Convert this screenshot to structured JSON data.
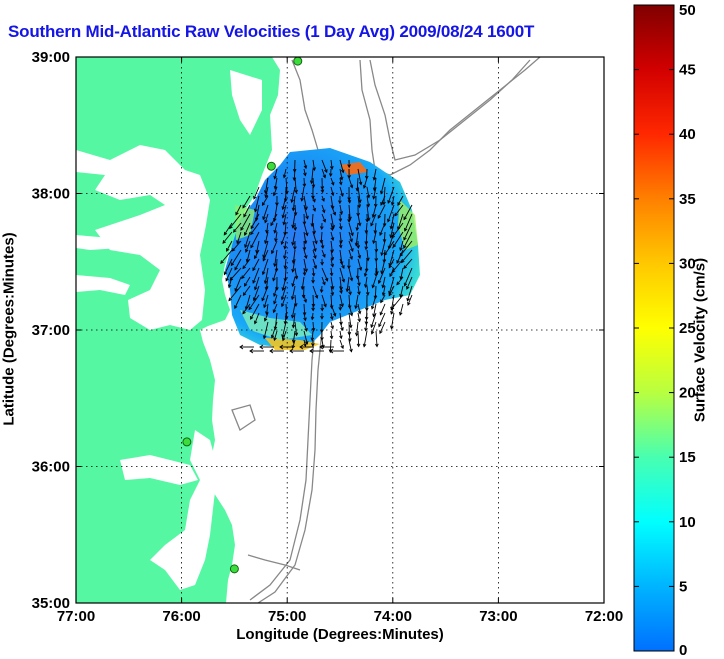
{
  "title": {
    "name": "Southern Mid-Atlantic Raw Velocities",
    "avg": "(1 Day Avg)",
    "datetime": "2009/08/24 1600",
    "tz_fragment": "T"
  },
  "axes": {
    "xlabel": "Longitude (Degrees:Minutes)",
    "ylabel": "Latitude (Degrees:Minutes)",
    "x_ticks": [
      "77:00",
      "76:00",
      "75:00",
      "74:00",
      "73:00",
      "72:00"
    ],
    "y_ticks": [
      "39:00",
      "38:00",
      "37:00",
      "36:00",
      "35:00"
    ]
  },
  "colorbar": {
    "label": "Surface Velocity (cm/s)",
    "ticks": [
      "50",
      "45",
      "40",
      "35",
      "30",
      "25",
      "20",
      "15",
      "10",
      "5",
      "0"
    ],
    "min": 0,
    "max": 50,
    "colors": [
      "#0070ff",
      "#00b4ff",
      "#00ffff",
      "#48ffb0",
      "#b8ff40",
      "#ffff00",
      "#ffc800",
      "#ff8000",
      "#ff2800",
      "#d20000",
      "#800000"
    ]
  },
  "map": {
    "land_color": "#55f7a3",
    "water_color": "#ffffff",
    "contour_color": "#888888",
    "grid": true,
    "extent": {
      "lon": [
        -77,
        -72
      ],
      "lat": [
        35,
        39
      ]
    },
    "station_markers": [
      {
        "lon": -74.9,
        "lat": 38.97
      },
      {
        "lon": -75.15,
        "lat": 38.2
      },
      {
        "lon": -75.95,
        "lat": 36.18
      },
      {
        "lon": -75.5,
        "lat": 35.25
      }
    ]
  }
}
